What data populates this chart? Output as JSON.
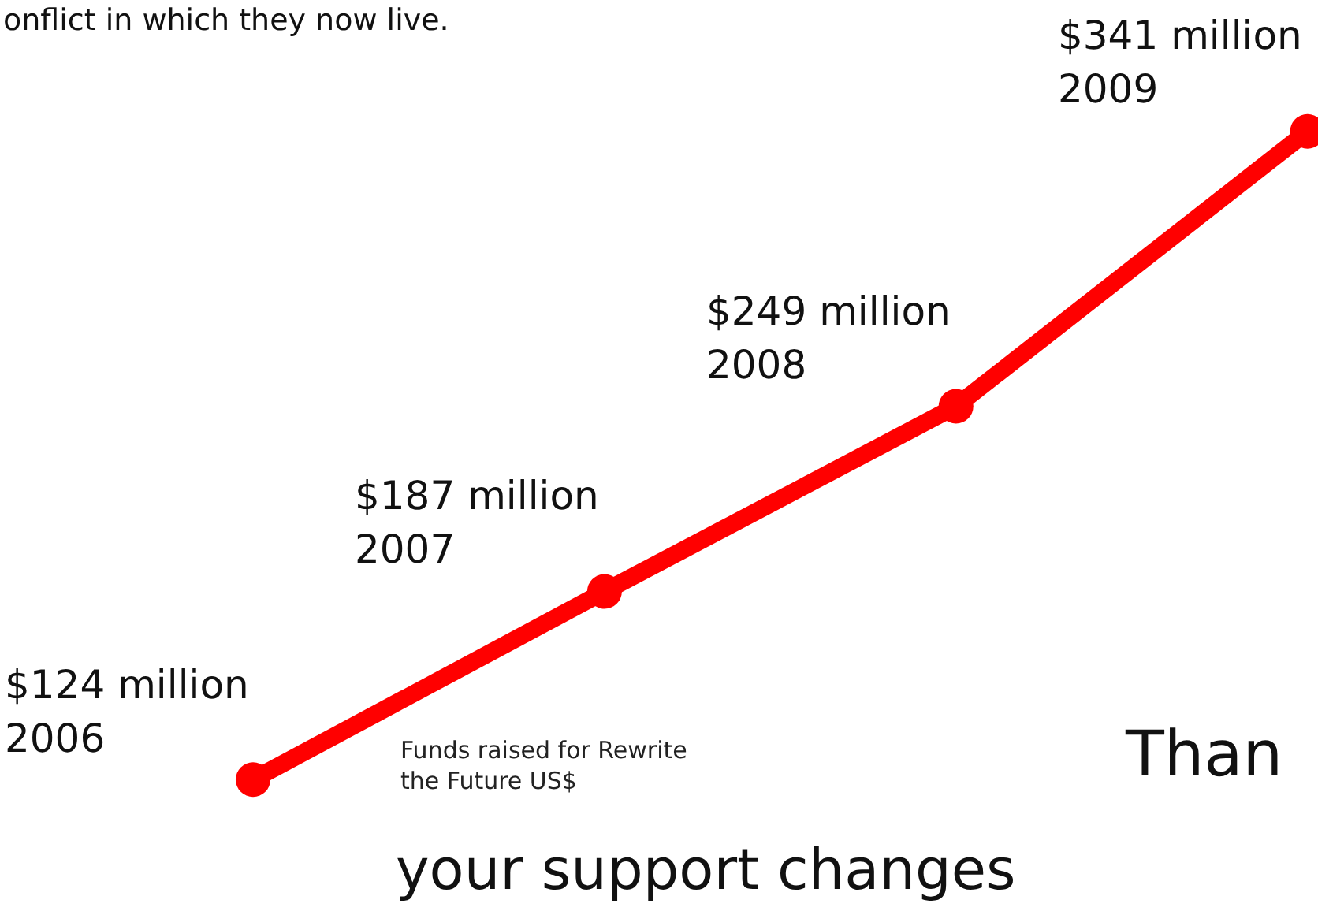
{
  "chart_data": {
    "type": "line",
    "title": "Funds raised for Rewrite\nthe Future US$",
    "categories": [
      null,
      null,
      null,
      null
    ],
    "series": [
      {
        "color": "#ff0000",
        "values": [
          124,
          187,
          249,
          341
        ],
        "value_labels": [
          "$124 million",
          "$187 million",
          "$249 million",
          "$341 million"
        ]
      }
    ],
    "ylim": [
      80,
      385
    ],
    "tick_labels": false,
    "marker": "circle",
    "line_style": "solid",
    "annotations": [
      "onflict in which they now live.",
      "Than",
      "your support changes",
      "2006",
      "2007",
      "2008",
      "2009"
    ]
  }
}
